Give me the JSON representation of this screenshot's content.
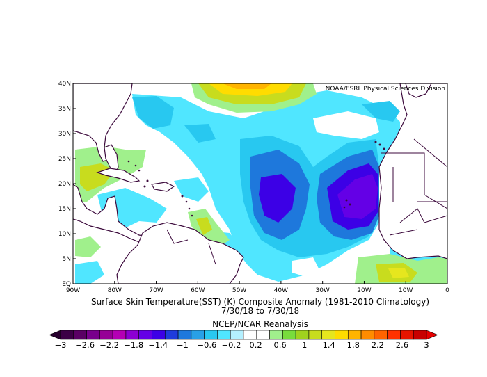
{
  "credit": "NOAA/ESRL Physical Sciences Division",
  "title_line1": "Surface Skin Temperature(SST) (K) Composite Anomaly (1981-2010 Climatology)",
  "title_line2": "7/30/18   to 7/30/18",
  "reanalysis": "NCEP/NCAR Reanalysis",
  "lat_ticks": [
    "40N",
    "35N",
    "30N",
    "25N",
    "20N",
    "15N",
    "10N",
    "5N",
    "EQ"
  ],
  "lon_ticks": [
    "90W",
    "80W",
    "70W",
    "60W",
    "50W",
    "40W",
    "30W",
    "20W",
    "10W",
    "0"
  ],
  "colorbar": {
    "labels": [
      "-3",
      "-2.6",
      "-2.2",
      "-1.8",
      "-1.4",
      "-1",
      "-0.6",
      "-0.2",
      "0.2",
      "0.6",
      "1",
      "1.4",
      "1.8",
      "2.2",
      "2.6",
      "3"
    ],
    "colors": [
      "#3c0046",
      "#5a0064",
      "#78008c",
      "#960096",
      "#b400b4",
      "#8c00d2",
      "#6400e6",
      "#3c00e6",
      "#1e3cdc",
      "#1e78dc",
      "#28a0e6",
      "#28c8f0",
      "#50e6ff",
      "#b4f0ff",
      "#ffffff",
      "#ffffff",
      "#a0f08c",
      "#78dc3c",
      "#a0d21e",
      "#c8dc1e",
      "#e6e61e",
      "#ffdc00",
      "#ffb400",
      "#ff8c00",
      "#ff6400",
      "#ff3200",
      "#e61400",
      "#c80000"
    ],
    "under_color": "#28002e",
    "over_color": "#e60000"
  },
  "colors": {
    "land": "#ffffff",
    "coast": "#3c0a3c",
    "background": "#ffffff"
  }
}
